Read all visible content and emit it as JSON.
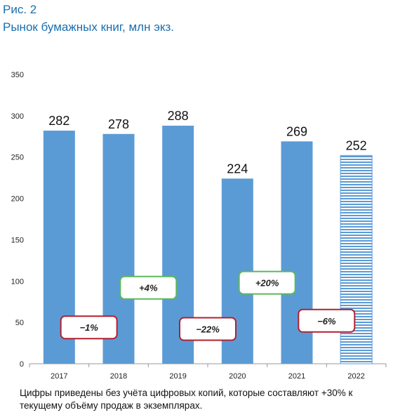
{
  "figure": {
    "label": "Рис. 2",
    "title": "Рынок бумажных книг, млн экз."
  },
  "note": "Цифры приведены без учёта цифровых копий, которые составляют +30% к текущему объёму продаж в экземплярах.",
  "colors": {
    "bar": "#5b9bd5",
    "forecast_stripe": "#5b9bd5",
    "positive_border": "#5cb85c",
    "negative_border": "#b22030",
    "axis": "#999999",
    "title": "#1a6fb0"
  },
  "chart_data": {
    "type": "bar",
    "categories": [
      "2017",
      "2018",
      "2019",
      "2020",
      "2021",
      "2022"
    ],
    "values": [
      282,
      278,
      288,
      224,
      269,
      252
    ],
    "data_labels": [
      "282",
      "278",
      "288",
      "224",
      "269",
      "252"
    ],
    "forecast_index": 5,
    "ylim": [
      0,
      350
    ],
    "yticks": [
      0,
      50,
      100,
      150,
      200,
      250,
      300,
      350
    ],
    "grid": false,
    "changes": [
      {
        "text": "−1%",
        "sign": "negative",
        "y": 44
      },
      {
        "text": "+4%",
        "sign": "positive",
        "y": 92
      },
      {
        "text": "−22%",
        "sign": "negative",
        "y": 42
      },
      {
        "text": "+20%",
        "sign": "positive",
        "y": 98
      },
      {
        "text": "−6%",
        "sign": "negative",
        "y": 52
      }
    ]
  }
}
